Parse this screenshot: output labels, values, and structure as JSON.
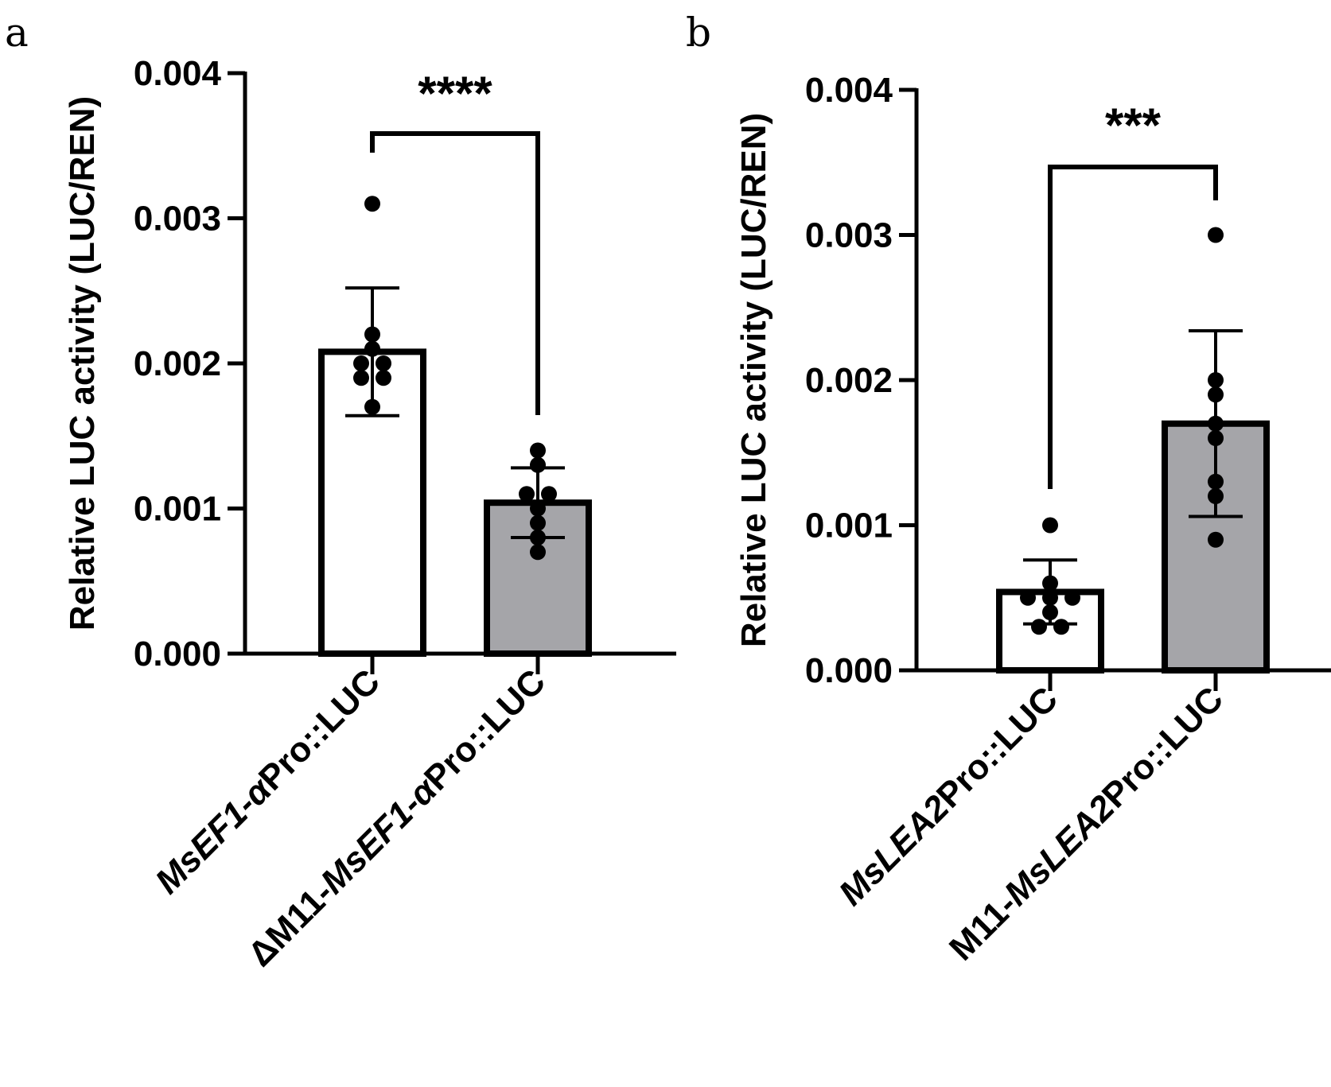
{
  "chart_data": [
    {
      "type": "bar",
      "panel_label": "a",
      "ylabel": "Relative LUC activity (LUC/REN)",
      "ylim": [
        0,
        0.004
      ],
      "yticks": [
        "0.000",
        "0.001",
        "0.002",
        "0.003",
        "0.004"
      ],
      "ytick_values": [
        0,
        0.001,
        0.002,
        0.003,
        0.004
      ],
      "categories": [
        {
          "parts": [
            {
              "text": "MsEF1-α",
              "italic": true
            },
            {
              "text": "Pro::LUC",
              "italic": false
            }
          ]
        },
        {
          "parts": [
            {
              "text": "ΔM11-",
              "italic": false
            },
            {
              "text": "MsEF1-α",
              "italic": true
            },
            {
              "text": "Pro::LUC",
              "italic": false
            }
          ]
        }
      ],
      "series": [
        {
          "name": "mean",
          "values": [
            0.00208,
            0.00104
          ],
          "sd": [
            0.00044,
            0.00024
          ]
        }
      ],
      "points": [
        [
          0.0031,
          0.0022,
          0.0021,
          0.002,
          0.002,
          0.0019,
          0.0019,
          0.0017
        ],
        [
          0.0014,
          0.0013,
          0.0011,
          0.0011,
          0.001,
          0.0009,
          0.0008,
          0.0007
        ]
      ],
      "bar_colors": [
        "#ffffff",
        "#a5a5a9"
      ],
      "significance": "****"
    },
    {
      "type": "bar",
      "panel_label": "b",
      "ylabel": "Relative LUC activity (LUC/REN)",
      "ylim": [
        0,
        0.004
      ],
      "yticks": [
        "0.000",
        "0.001",
        "0.002",
        "0.003",
        "0.004"
      ],
      "ytick_values": [
        0,
        0.001,
        0.002,
        0.003,
        0.004
      ],
      "categories": [
        {
          "parts": [
            {
              "text": "MsLEA2",
              "italic": true
            },
            {
              "text": "Pro::LUC",
              "italic": false
            }
          ]
        },
        {
          "parts": [
            {
              "text": "M11-",
              "italic": false
            },
            {
              "text": "MsLEA2",
              "italic": true
            },
            {
              "text": "Pro::LUC",
              "italic": false
            }
          ]
        }
      ],
      "series": [
        {
          "name": "mean",
          "values": [
            0.00054,
            0.0017
          ],
          "sd": [
            0.00022,
            0.00064
          ]
        }
      ],
      "points": [
        [
          0.001,
          0.0006,
          0.0005,
          0.0005,
          0.0005,
          0.0004,
          0.0003,
          0.0003
        ],
        [
          0.003,
          0.002,
          0.0019,
          0.0017,
          0.0016,
          0.0013,
          0.0012,
          0.0009
        ]
      ],
      "bar_colors": [
        "#ffffff",
        "#a5a5a9"
      ],
      "significance": "***"
    }
  ]
}
